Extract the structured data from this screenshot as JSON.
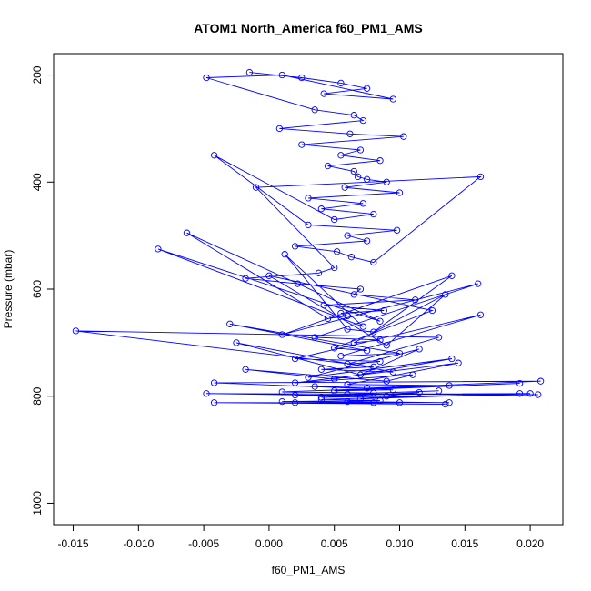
{
  "chart_data": {
    "type": "line",
    "title": "ATOM1 North_America f60_PM1_AMS",
    "xlabel": "f60_PM1_AMS",
    "ylabel": "Pressure (mbar)",
    "xlim": [
      -0.0165,
      0.0225
    ],
    "ylim": [
      1040,
      160
    ],
    "y_reversed": true,
    "grid": false,
    "markers": "open-circle",
    "line_color": "#0000ff",
    "x_ticks": [
      -0.015,
      -0.01,
      -0.005,
      0.0,
      0.005,
      0.01,
      0.015,
      0.02
    ],
    "x_tick_labels": [
      "-0.015",
      "-0.010",
      "-0.005",
      "0.000",
      "0.005",
      "0.010",
      "0.015",
      "0.020"
    ],
    "y_ticks": [
      200,
      400,
      600,
      800,
      1000
    ],
    "y_tick_labels": [
      "200",
      "400",
      "600",
      "800",
      "1000"
    ],
    "series": [
      {
        "x": [
          -0.0015,
          0.0025,
          0.0055,
          0.0075,
          0.0042,
          0.0095,
          0.001,
          -0.0048,
          0.0035,
          0.0065,
          0.0072,
          0.0008,
          0.0062,
          0.0103,
          0.0025,
          0.007,
          0.0055,
          0.0085,
          0.0045,
          0.0065,
          0.0068,
          0.0075,
          0.009,
          0.0058,
          0.01,
          0.003,
          0.0072,
          0.004,
          0.008,
          0.005,
          -0.0042,
          0.003,
          0.0098,
          0.006,
          0.0075,
          0.002,
          0.0052,
          0.0063,
          0.008,
          0.0162,
          -0.001,
          0.005,
          0.0038,
          -0.0018,
          0.0022,
          0.007,
          0.0065,
          0.0112,
          0.0042,
          0.0088,
          0.0055,
          0.006,
          0.0045,
          -0.0063,
          0.0085,
          -0.0085,
          0.0072,
          0.0012,
          0.006,
          0.008,
          0.014,
          0.001,
          0.016,
          0.0035,
          0.0085,
          0.0065,
          0.0135,
          0.009,
          0.0,
          0.0125,
          0.005,
          0.0075,
          -0.003,
          0.01,
          0.0055,
          0.0162,
          0.002,
          0.0085,
          0.006,
          0.013,
          -0.0148,
          0.008,
          0.004,
          0.0095,
          -0.0025,
          0.007,
          0.0115,
          0.003,
          0.014,
          0.005,
          -0.0018,
          0.009,
          0.011,
          0.002,
          0.0145,
          0.006,
          0.0138,
          0.0035,
          0.0075,
          0.0208,
          -0.0042,
          0.0095,
          0.005,
          0.0192,
          0.001,
          0.008,
          0.013,
          0.006,
          0.02,
          0.002,
          0.009,
          -0.0048,
          0.0206,
          0.004,
          0.0115,
          0.007,
          0.0192,
          0.004,
          0.0085,
          0.001,
          0.0138,
          0.006,
          0.01,
          -0.0042,
          0.0135,
          0.002,
          0.008
        ],
        "y": [
          195,
          205,
          215,
          225,
          235,
          245,
          200,
          205,
          265,
          275,
          285,
          300,
          310,
          315,
          330,
          340,
          350,
          360,
          370,
          380,
          390,
          395,
          400,
          410,
          420,
          430,
          440,
          450,
          460,
          470,
          350,
          480,
          490,
          500,
          510,
          520,
          530,
          540,
          550,
          390,
          410,
          560,
          570,
          580,
          590,
          600,
          610,
          620,
          630,
          640,
          645,
          650,
          655,
          495,
          660,
          525,
          670,
          535,
          675,
          680,
          575,
          685,
          590,
          690,
          695,
          700,
          610,
          705,
          575,
          640,
          710,
          715,
          665,
          720,
          725,
          648,
          730,
          735,
          740,
          690,
          678,
          745,
          750,
          755,
          700,
          760,
          712,
          765,
          730,
          768,
          750,
          772,
          760,
          775,
          738,
          778,
          780,
          782,
          785,
          772,
          775,
          788,
          790,
          776,
          792,
          794,
          790,
          796,
          795,
          798,
          800,
          795,
          797,
          802,
          793,
          805,
          795,
          806,
          808,
          810,
          812,
          810,
          812,
          812,
          815,
          812,
          812
        ]
      }
    ]
  }
}
